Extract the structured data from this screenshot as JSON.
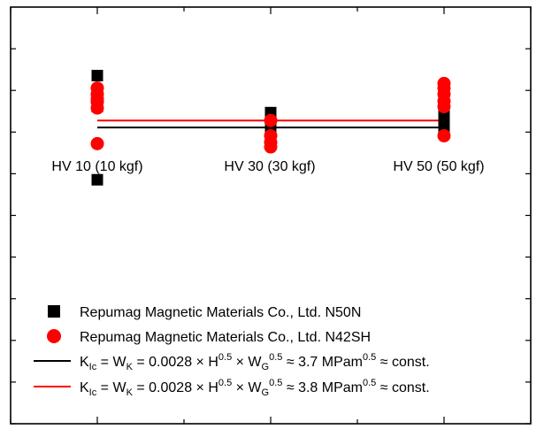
{
  "chart_data": {
    "type": "scatter",
    "title": "",
    "xlabel": "",
    "ylabel": "",
    "categories": [
      "HV 10 (10 kgf)",
      "HV 30 (30 kgf)",
      "HV 50 (50 kgf)"
    ],
    "x": [
      1,
      2,
      3
    ],
    "xlim": [
      0.5,
      3.5
    ],
    "ylim": [
      0,
      9
    ],
    "yticks_count": 10,
    "grid": false,
    "legend_position": "bottom",
    "series": [
      {
        "name": "Repumag Magnetic Materials Co., Ltd. N50N",
        "marker": "square",
        "color": "#000000",
        "points": [
          {
            "x": 1,
            "y": 7.52
          },
          {
            "x": 1,
            "y": 7.05
          },
          {
            "x": 1,
            "y": 6.95
          },
          {
            "x": 1,
            "y": 6.85
          },
          {
            "x": 1,
            "y": 5.27
          },
          {
            "x": 2,
            "y": 6.72
          },
          {
            "x": 2,
            "y": 6.62
          },
          {
            "x": 2,
            "y": 6.52
          },
          {
            "x": 2,
            "y": 6.45
          },
          {
            "x": 2,
            "y": 6.35
          },
          {
            "x": 3,
            "y": 6.78
          },
          {
            "x": 3,
            "y": 6.68
          },
          {
            "x": 3,
            "y": 6.58
          },
          {
            "x": 3,
            "y": 6.48
          },
          {
            "x": 3,
            "y": 6.35
          }
        ]
      },
      {
        "name": "Repumag Magnetic Materials Co., Ltd. N42SH",
        "marker": "circle",
        "color": "#ff0000",
        "points": [
          {
            "x": 1,
            "y": 7.25
          },
          {
            "x": 1,
            "y": 7.12
          },
          {
            "x": 1,
            "y": 7.02
          },
          {
            "x": 1,
            "y": 6.95
          },
          {
            "x": 1,
            "y": 6.82
          },
          {
            "x": 1,
            "y": 6.05
          },
          {
            "x": 2,
            "y": 6.55
          },
          {
            "x": 2,
            "y": 6.22
          },
          {
            "x": 2,
            "y": 6.08
          },
          {
            "x": 2,
            "y": 5.98
          },
          {
            "x": 3,
            "y": 7.35
          },
          {
            "x": 3,
            "y": 7.25
          },
          {
            "x": 3,
            "y": 7.12
          },
          {
            "x": 3,
            "y": 6.97
          },
          {
            "x": 3,
            "y": 6.85
          },
          {
            "x": 3,
            "y": 6.22
          }
        ]
      }
    ],
    "lines": [
      {
        "color": "#000000",
        "y": 6.4,
        "x_range": [
          1,
          3
        ],
        "label": {
          "pre": "K",
          "sub1": "Ic",
          "mid1": " = W",
          "sub2": "K",
          "mid2": " = 0.0028 × H",
          "sup1": "0.5",
          "mid3": " × W",
          "sub3": "G",
          "sup2": "0.5",
          "mid4": " ≈ 3.7 MPam",
          "sup3": "0.5",
          "post": " ≈ const."
        }
      },
      {
        "color": "#ff0000",
        "y": 6.55,
        "x_range": [
          1,
          3
        ],
        "label": {
          "pre": "K",
          "sub1": "Ic",
          "mid1": " = W",
          "sub2": "K",
          "mid2": " = 0.0028 × H",
          "sup1": "0.5",
          "mid3": " × W",
          "sub3": "G",
          "sup2": "0.5",
          "mid4": " ≈ 3.8 MPam",
          "sup3": "0.5",
          "post": " ≈ const."
        }
      }
    ]
  }
}
